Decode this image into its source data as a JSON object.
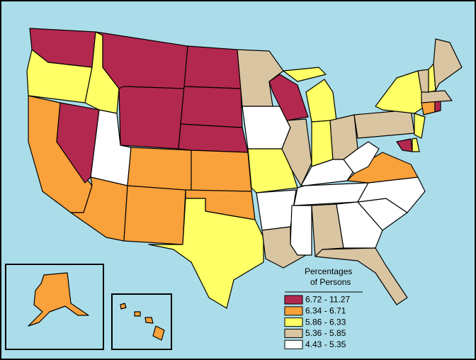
{
  "legend": {
    "title": [
      "Percentages",
      "of Persons"
    ],
    "items": [
      {
        "label": "6.72 - 11.27",
        "color": "#b3284f"
      },
      {
        "label": "6.34 - 6.71",
        "color": "#f9a13a"
      },
      {
        "label": "5.86 - 6.33",
        "color": "#ffff66"
      },
      {
        "label": "5.36 - 5.85",
        "color": "#dac5a2"
      },
      {
        "label": "4.43 - 5.35",
        "color": "#ffffff"
      }
    ]
  }
}
